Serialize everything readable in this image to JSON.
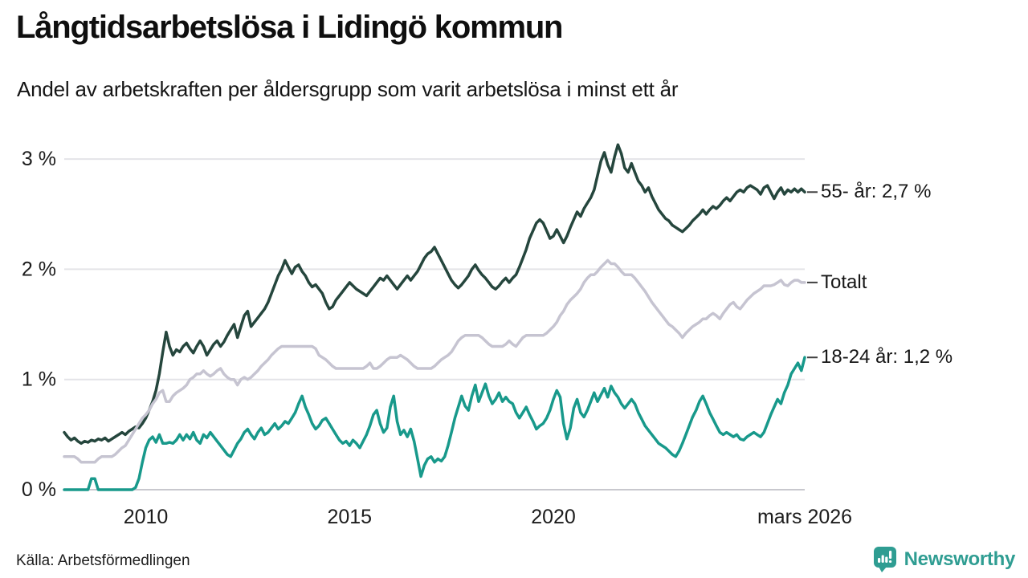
{
  "header": {
    "title": "Långtidsarbetslösa i Lidingö kommun",
    "subtitle": "Andel av arbetskraften per åldersgrupp som varit arbetslösa i minst ett år"
  },
  "footer": {
    "source": "Källa: Arbetsförmedlingen",
    "brand": "Newsworthy"
  },
  "colors": {
    "brand_teal": "#2f9d92",
    "grid": "#e4e4e8",
    "zero_line": "#c8c8ce",
    "connector": "#3f3f3f",
    "text": "#161616"
  },
  "chart_data": {
    "type": "line",
    "title": "Långtidsarbetslösa i Lidingö kommun",
    "subtitle": "Andel av arbetskraften per åldersgrupp som varit arbetslösa i minst ett år",
    "unit": "%",
    "frequency": "monthly",
    "x_start": "2008-01",
    "x_end": "2026-03",
    "ylim": [
      0,
      3.2
    ],
    "grid": "horizontal",
    "legend_position": "right-end-labels",
    "y_ticks": [
      {
        "label": "0 %",
        "value": 0
      },
      {
        "label": "1 %",
        "value": 1
      },
      {
        "label": "2 %",
        "value": 2
      },
      {
        "label": "3 %",
        "value": 3
      }
    ],
    "x_ticks": [
      {
        "label": "2010",
        "month_index": 24
      },
      {
        "label": "2015",
        "month_index": 84
      },
      {
        "label": "2020",
        "month_index": 144
      },
      {
        "label": "mars 2026",
        "month_index": 218
      }
    ],
    "series": [
      {
        "name": "55- år",
        "label": "55- år: 2,7 %",
        "end_value": "2,7 %",
        "color": "#25463d",
        "values": [
          0.52,
          0.48,
          0.45,
          0.47,
          0.44,
          0.42,
          0.44,
          0.43,
          0.45,
          0.44,
          0.46,
          0.45,
          0.47,
          0.44,
          0.46,
          0.48,
          0.5,
          0.52,
          0.5,
          0.53,
          0.55,
          0.57,
          0.56,
          0.6,
          0.65,
          0.72,
          0.8,
          0.9,
          1.05,
          1.25,
          1.43,
          1.3,
          1.22,
          1.27,
          1.25,
          1.3,
          1.33,
          1.28,
          1.24,
          1.3,
          1.35,
          1.3,
          1.22,
          1.27,
          1.32,
          1.35,
          1.3,
          1.34,
          1.4,
          1.45,
          1.5,
          1.38,
          1.48,
          1.58,
          1.62,
          1.48,
          1.52,
          1.56,
          1.6,
          1.64,
          1.7,
          1.78,
          1.86,
          1.94,
          2.0,
          2.08,
          2.02,
          1.96,
          2.02,
          2.04,
          1.98,
          1.94,
          1.88,
          1.84,
          1.86,
          1.82,
          1.78,
          1.7,
          1.64,
          1.66,
          1.72,
          1.76,
          1.8,
          1.84,
          1.88,
          1.85,
          1.82,
          1.8,
          1.78,
          1.76,
          1.8,
          1.84,
          1.88,
          1.92,
          1.9,
          1.94,
          1.9,
          1.86,
          1.82,
          1.86,
          1.9,
          1.94,
          1.9,
          1.94,
          1.98,
          2.04,
          2.1,
          2.14,
          2.16,
          2.2,
          2.14,
          2.08,
          2.02,
          1.96,
          1.9,
          1.86,
          1.83,
          1.86,
          1.9,
          1.94,
          2.0,
          2.04,
          1.99,
          1.95,
          1.92,
          1.88,
          1.84,
          1.82,
          1.85,
          1.89,
          1.92,
          1.88,
          1.92,
          1.95,
          2.02,
          2.1,
          2.18,
          2.28,
          2.35,
          2.42,
          2.45,
          2.42,
          2.35,
          2.28,
          2.3,
          2.36,
          2.3,
          2.24,
          2.3,
          2.38,
          2.45,
          2.52,
          2.48,
          2.55,
          2.6,
          2.65,
          2.72,
          2.85,
          2.98,
          3.06,
          2.95,
          2.88,
          3.02,
          3.13,
          3.05,
          2.92,
          2.88,
          2.96,
          2.88,
          2.8,
          2.76,
          2.7,
          2.74,
          2.66,
          2.6,
          2.54,
          2.5,
          2.46,
          2.44,
          2.4,
          2.38,
          2.36,
          2.34,
          2.37,
          2.4,
          2.44,
          2.47,
          2.5,
          2.54,
          2.5,
          2.54,
          2.57,
          2.55,
          2.58,
          2.62,
          2.65,
          2.62,
          2.66,
          2.7,
          2.72,
          2.7,
          2.74,
          2.76,
          2.74,
          2.72,
          2.68,
          2.74,
          2.76,
          2.7,
          2.64,
          2.7,
          2.74,
          2.68,
          2.72,
          2.7,
          2.73,
          2.7,
          2.73,
          2.7
        ]
      },
      {
        "name": "Totalt",
        "label": "Totalt",
        "end_value": "1,9 %",
        "color": "#c6c4d1",
        "values": [
          0.3,
          0.3,
          0.3,
          0.3,
          0.28,
          0.25,
          0.25,
          0.25,
          0.25,
          0.25,
          0.28,
          0.3,
          0.3,
          0.3,
          0.3,
          0.32,
          0.35,
          0.38,
          0.4,
          0.45,
          0.5,
          0.55,
          0.6,
          0.65,
          0.68,
          0.72,
          0.78,
          0.82,
          0.88,
          0.9,
          0.8,
          0.8,
          0.85,
          0.88,
          0.9,
          0.92,
          0.95,
          1.0,
          1.02,
          1.05,
          1.05,
          1.08,
          1.05,
          1.03,
          1.05,
          1.08,
          1.1,
          1.05,
          1.02,
          1.0,
          1.0,
          0.95,
          1.0,
          1.02,
          1.0,
          1.02,
          1.05,
          1.08,
          1.12,
          1.15,
          1.18,
          1.22,
          1.25,
          1.28,
          1.3,
          1.3,
          1.3,
          1.3,
          1.3,
          1.3,
          1.3,
          1.3,
          1.3,
          1.3,
          1.28,
          1.22,
          1.2,
          1.18,
          1.15,
          1.12,
          1.1,
          1.1,
          1.1,
          1.1,
          1.1,
          1.1,
          1.1,
          1.1,
          1.1,
          1.12,
          1.15,
          1.1,
          1.1,
          1.12,
          1.15,
          1.18,
          1.2,
          1.2,
          1.2,
          1.22,
          1.2,
          1.18,
          1.15,
          1.12,
          1.1,
          1.1,
          1.1,
          1.1,
          1.1,
          1.12,
          1.15,
          1.18,
          1.2,
          1.22,
          1.25,
          1.3,
          1.35,
          1.38,
          1.4,
          1.4,
          1.4,
          1.4,
          1.4,
          1.38,
          1.35,
          1.32,
          1.3,
          1.3,
          1.3,
          1.3,
          1.32,
          1.35,
          1.32,
          1.3,
          1.34,
          1.38,
          1.4,
          1.4,
          1.4,
          1.4,
          1.4,
          1.4,
          1.42,
          1.45,
          1.48,
          1.52,
          1.58,
          1.62,
          1.68,
          1.72,
          1.75,
          1.78,
          1.82,
          1.88,
          1.92,
          1.95,
          1.95,
          1.98,
          2.02,
          2.05,
          2.08,
          2.05,
          2.05,
          2.02,
          1.98,
          1.95,
          1.95,
          1.95,
          1.92,
          1.88,
          1.84,
          1.8,
          1.75,
          1.7,
          1.66,
          1.62,
          1.58,
          1.54,
          1.5,
          1.48,
          1.45,
          1.42,
          1.38,
          1.42,
          1.45,
          1.48,
          1.5,
          1.52,
          1.55,
          1.55,
          1.58,
          1.6,
          1.58,
          1.55,
          1.6,
          1.64,
          1.68,
          1.7,
          1.66,
          1.64,
          1.68,
          1.72,
          1.75,
          1.78,
          1.8,
          1.82,
          1.85,
          1.85,
          1.85,
          1.86,
          1.88,
          1.9,
          1.86,
          1.85,
          1.88,
          1.9,
          1.9,
          1.88,
          1.88
        ]
      },
      {
        "name": "18-24 år",
        "label": "18-24 år: 1,2 %",
        "end_value": "1,2 %",
        "color": "#18998b",
        "values": [
          0.0,
          0.0,
          0.0,
          0.0,
          0.0,
          0.0,
          0.0,
          0.0,
          0.1,
          0.1,
          0.0,
          0.0,
          0.0,
          0.0,
          0.0,
          0.0,
          0.0,
          0.0,
          0.0,
          0.0,
          0.0,
          0.02,
          0.1,
          0.25,
          0.38,
          0.45,
          0.48,
          0.43,
          0.5,
          0.42,
          0.42,
          0.43,
          0.42,
          0.45,
          0.5,
          0.45,
          0.5,
          0.46,
          0.52,
          0.45,
          0.42,
          0.5,
          0.47,
          0.52,
          0.48,
          0.44,
          0.4,
          0.36,
          0.32,
          0.3,
          0.36,
          0.42,
          0.46,
          0.52,
          0.55,
          0.5,
          0.46,
          0.52,
          0.56,
          0.5,
          0.52,
          0.56,
          0.6,
          0.55,
          0.58,
          0.62,
          0.6,
          0.65,
          0.7,
          0.78,
          0.85,
          0.75,
          0.68,
          0.6,
          0.55,
          0.58,
          0.63,
          0.65,
          0.6,
          0.55,
          0.5,
          0.45,
          0.42,
          0.44,
          0.4,
          0.45,
          0.42,
          0.38,
          0.44,
          0.5,
          0.58,
          0.68,
          0.72,
          0.6,
          0.52,
          0.56,
          0.75,
          0.85,
          0.62,
          0.5,
          0.54,
          0.48,
          0.55,
          0.44,
          0.28,
          0.12,
          0.22,
          0.28,
          0.3,
          0.25,
          0.28,
          0.26,
          0.3,
          0.4,
          0.52,
          0.65,
          0.75,
          0.85,
          0.76,
          0.72,
          0.85,
          0.95,
          0.8,
          0.88,
          0.96,
          0.85,
          0.78,
          0.82,
          0.88,
          0.8,
          0.84,
          0.8,
          0.78,
          0.7,
          0.65,
          0.7,
          0.75,
          0.68,
          0.62,
          0.55,
          0.58,
          0.6,
          0.65,
          0.72,
          0.82,
          0.9,
          0.84,
          0.6,
          0.46,
          0.56,
          0.74,
          0.82,
          0.7,
          0.66,
          0.72,
          0.8,
          0.88,
          0.8,
          0.86,
          0.92,
          0.84,
          0.94,
          0.88,
          0.84,
          0.78,
          0.74,
          0.78,
          0.82,
          0.78,
          0.7,
          0.64,
          0.58,
          0.54,
          0.5,
          0.46,
          0.42,
          0.4,
          0.38,
          0.35,
          0.32,
          0.3,
          0.35,
          0.42,
          0.5,
          0.58,
          0.66,
          0.72,
          0.8,
          0.85,
          0.78,
          0.7,
          0.64,
          0.58,
          0.52,
          0.5,
          0.52,
          0.5,
          0.48,
          0.5,
          0.46,
          0.45,
          0.48,
          0.5,
          0.52,
          0.5,
          0.48,
          0.52,
          0.6,
          0.68,
          0.75,
          0.82,
          0.78,
          0.88,
          0.95,
          1.05,
          1.1,
          1.15,
          1.08,
          1.2
        ]
      }
    ]
  }
}
